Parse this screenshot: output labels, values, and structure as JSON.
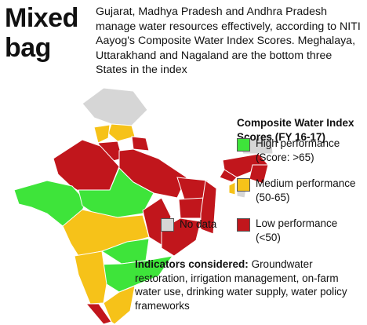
{
  "title": [
    "Mixed",
    "bag"
  ],
  "intro": "Gujarat, Madhya Pradesh and Andhra Pradesh manage water resources effectively, according to NITI Aayog's Composite Water Index Scores. Meghalaya, Uttarakhand and Nagaland are the bottom three States in the index",
  "legend": {
    "title": "Composite Water Index Scores (FY 16-17)",
    "items": [
      {
        "label": "High performance",
        "note": "(Score: >65)",
        "color": "#3ee43a"
      },
      {
        "label": "Medium performance",
        "note": "(50-65)",
        "color": "#f6c219"
      },
      {
        "label": "Low performance",
        "note": "(<50)",
        "color": "#c1161c"
      }
    ],
    "no_data": {
      "label": "No data",
      "color": "#d6d6d6"
    }
  },
  "indicators": {
    "lead": "Indicators considered:",
    "text": "Groundwater restoration, irrigation management, on-farm water use, drinking water supply, water policy frameworks"
  }
}
